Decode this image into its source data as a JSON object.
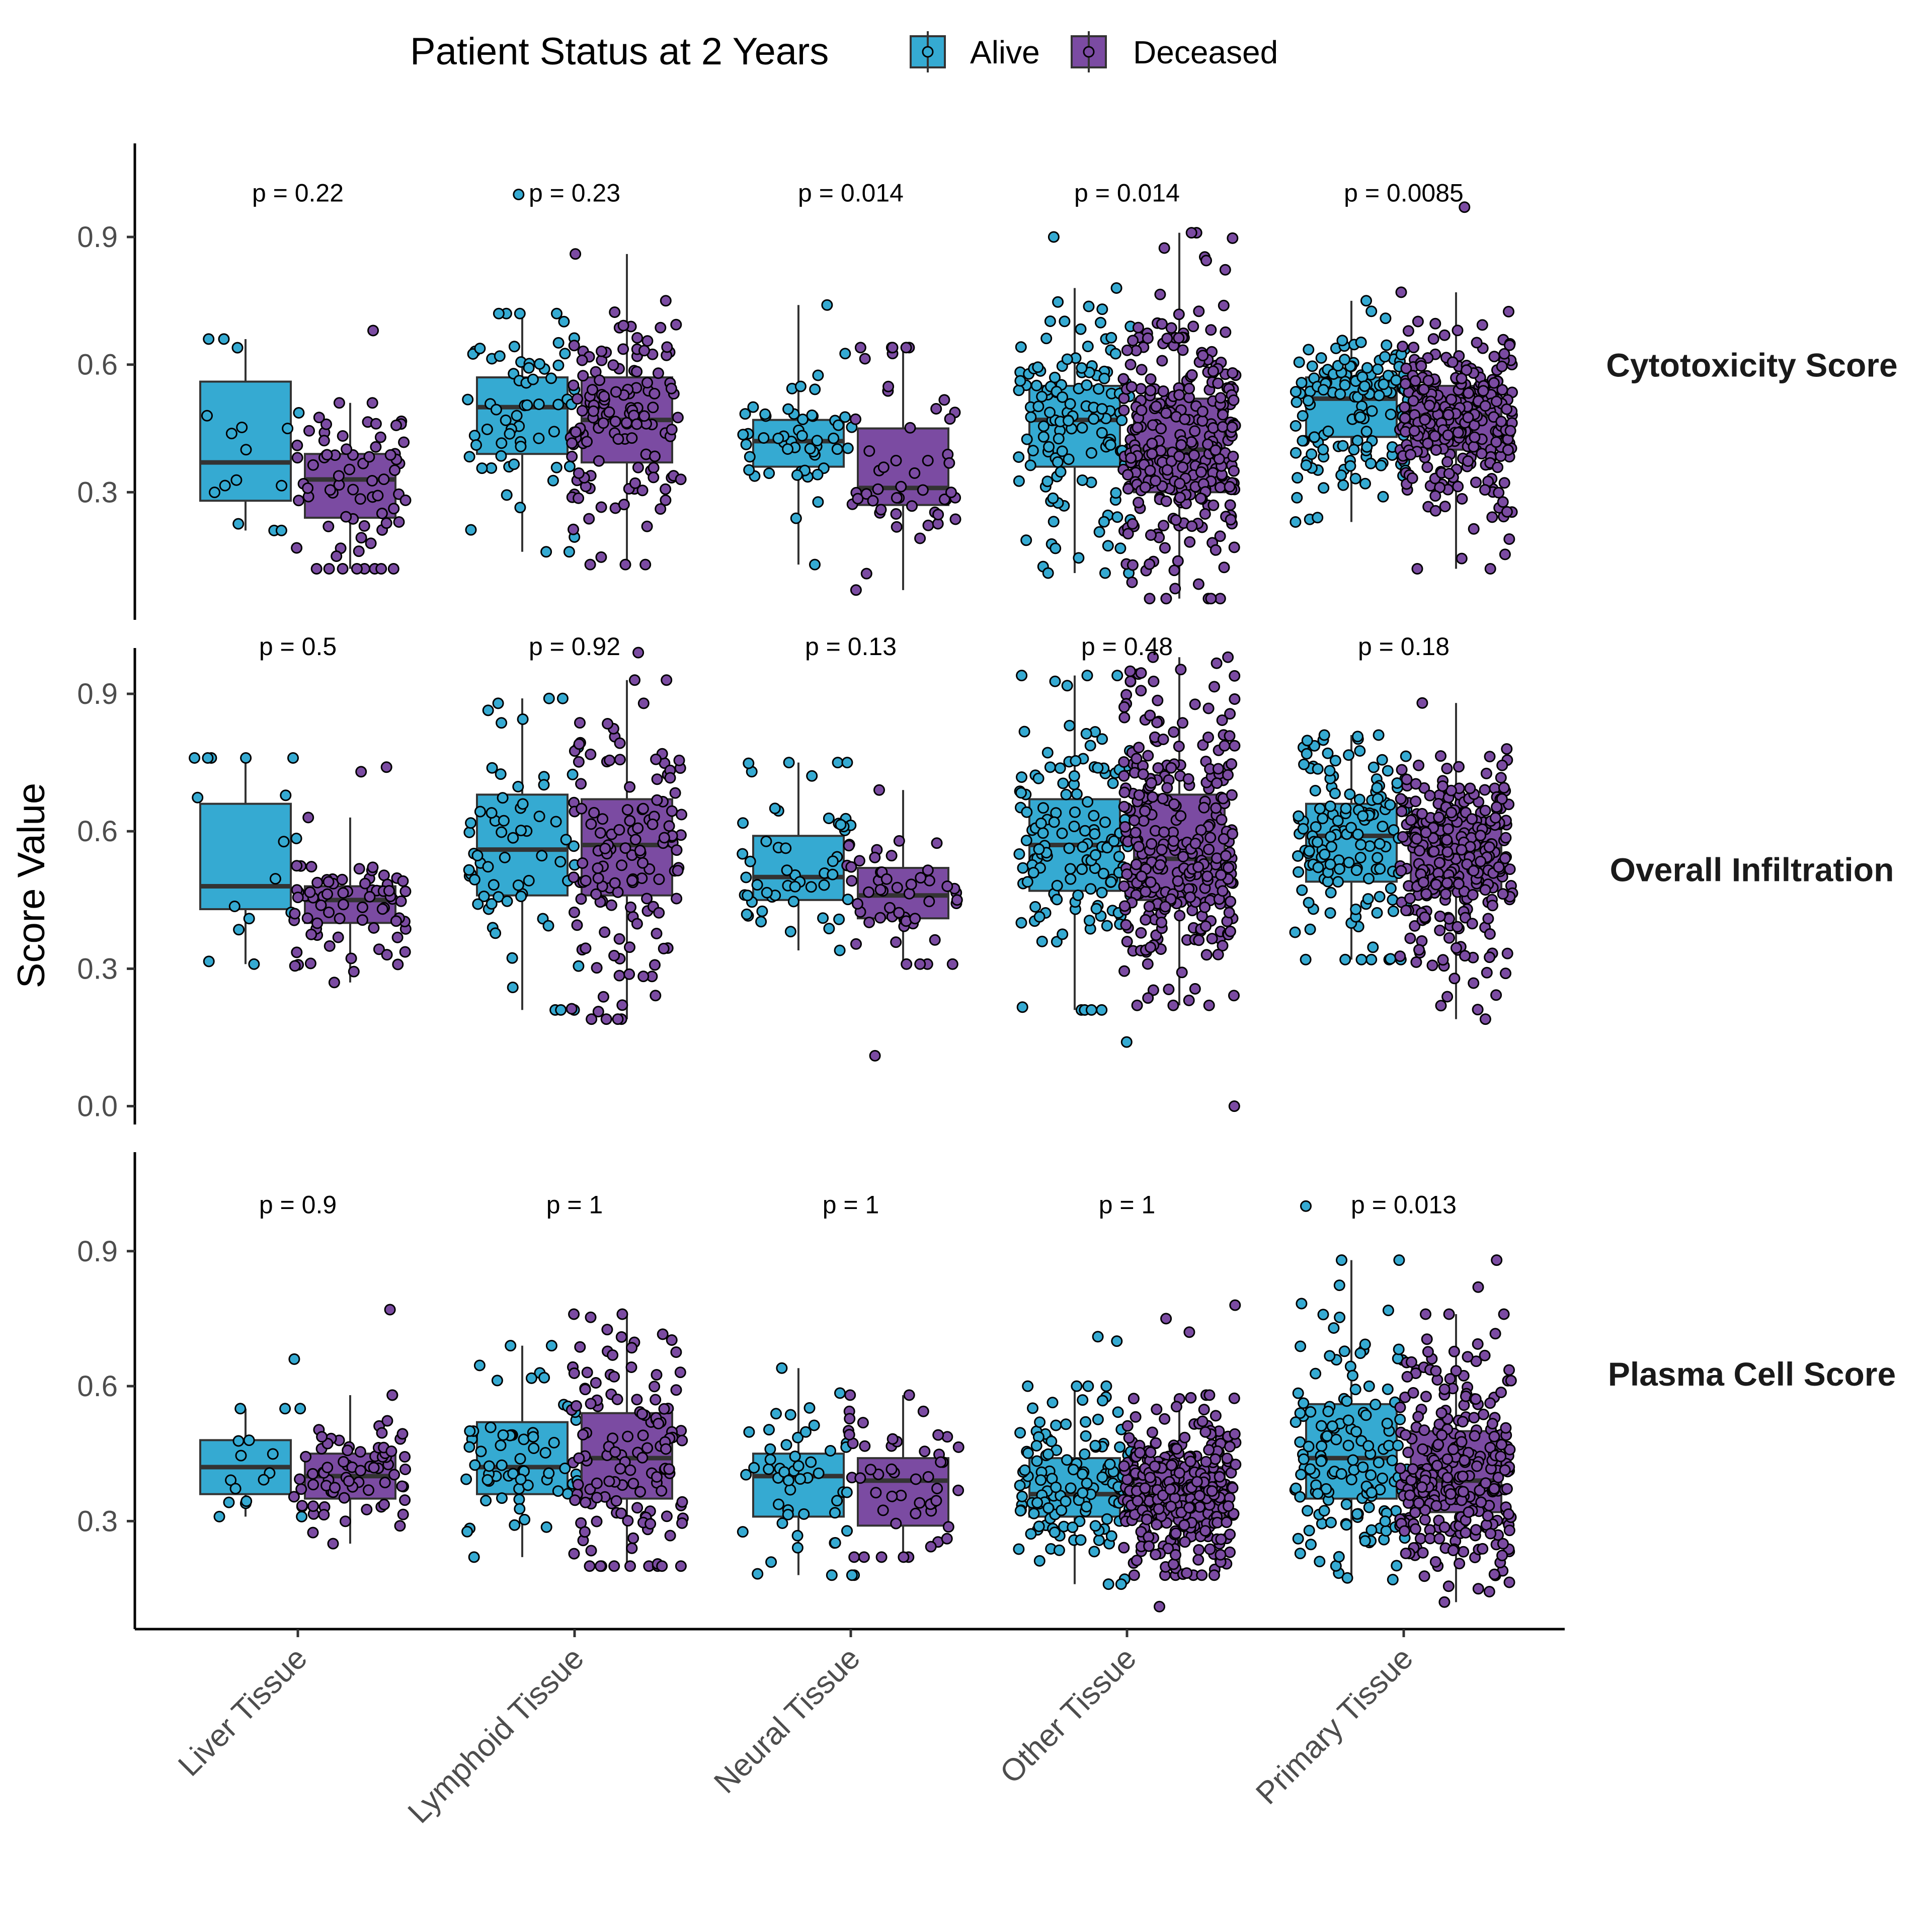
{
  "chart_data": {
    "type": "boxplot-jitter",
    "legend": {
      "title": "Patient Status at 2 Years",
      "position": "top",
      "entries": [
        {
          "name": "Alive",
          "color": "#35aad2"
        },
        {
          "name": "Deceased",
          "color": "#7b4ba2"
        }
      ]
    },
    "ylabel": "Score Value",
    "categories": [
      "Liver Tissue",
      "Lymphoid Tissue",
      "Neural Tissue",
      "Other Tissue",
      "Primary Tissue"
    ],
    "groups": [
      "Alive",
      "Deceased"
    ],
    "panels": [
      {
        "name": "Cytotoxicity Score",
        "ylim": [
          0.0,
          1.12
        ],
        "yticks": [
          {
            "value": 0.3,
            "label": "0.3"
          },
          {
            "value": 0.6,
            "label": "0.6"
          },
          {
            "value": 0.9,
            "label": "0.9"
          }
        ],
        "pvalues": [
          "p = 0.22",
          "p = 0.23",
          "p = 0.014",
          "p = 0.014",
          "p = 0.0085"
        ],
        "boxes": [
          [
            {
              "q1": 0.28,
              "median": 0.37,
              "q3": 0.56,
              "wlo": 0.21,
              "whi": 0.66,
              "n": 14,
              "outliers": []
            },
            {
              "q1": 0.24,
              "median": 0.33,
              "q3": 0.39,
              "wlo": 0.12,
              "whi": 0.51,
              "n": 70,
              "outliers": [
                0.68
              ]
            }
          ],
          [
            {
              "q1": 0.39,
              "median": 0.5,
              "q3": 0.57,
              "wlo": 0.16,
              "whi": 0.72,
              "n": 62,
              "outliers": [
                1.0
              ]
            },
            {
              "q1": 0.37,
              "median": 0.47,
              "q3": 0.57,
              "wlo": 0.13,
              "whi": 0.86,
              "n": 130,
              "outliers": []
            }
          ],
          [
            {
              "q1": 0.36,
              "median": 0.42,
              "q3": 0.47,
              "wlo": 0.13,
              "whi": 0.74,
              "n": 50,
              "outliers": []
            },
            {
              "q1": 0.27,
              "median": 0.31,
              "q3": 0.45,
              "wlo": 0.07,
              "whi": 0.64,
              "n": 48,
              "outliers": []
            }
          ],
          [
            {
              "q1": 0.36,
              "median": 0.47,
              "q3": 0.55,
              "wlo": 0.11,
              "whi": 0.78,
              "n": 130,
              "outliers": [
                0.9
              ]
            },
            {
              "q1": 0.3,
              "median": 0.4,
              "q3": 0.52,
              "wlo": 0.05,
              "whi": 0.91,
              "n": 300,
              "outliers": []
            }
          ],
          [
            {
              "q1": 0.43,
              "median": 0.52,
              "q3": 0.57,
              "wlo": 0.23,
              "whi": 0.75,
              "n": 140,
              "outliers": []
            },
            {
              "q1": 0.4,
              "median": 0.48,
              "q3": 0.55,
              "wlo": 0.12,
              "whi": 0.77,
              "n": 280,
              "outliers": [
                0.97
              ]
            }
          ]
        ]
      },
      {
        "name": "Overall Infiltration",
        "ylim": [
          -0.04,
          1.0
        ],
        "yticks": [
          {
            "value": 0.0,
            "label": "0.0"
          },
          {
            "value": 0.3,
            "label": "0.3"
          },
          {
            "value": 0.6,
            "label": "0.6"
          },
          {
            "value": 0.9,
            "label": "0.9"
          }
        ],
        "pvalues": [
          "p = 0.5",
          "p = 0.92",
          "p = 0.13",
          "p = 0.48",
          "p = 0.18"
        ],
        "boxes": [
          [
            {
              "q1": 0.43,
              "median": 0.48,
              "q3": 0.66,
              "wlo": 0.31,
              "whi": 0.76,
              "n": 14,
              "outliers": []
            },
            {
              "q1": 0.4,
              "median": 0.45,
              "q3": 0.48,
              "wlo": 0.27,
              "whi": 0.63,
              "n": 70,
              "outliers": [
                0.73,
                0.74
              ]
            }
          ],
          [
            {
              "q1": 0.46,
              "median": 0.56,
              "q3": 0.68,
              "wlo": 0.21,
              "whi": 0.89,
              "n": 62,
              "outliers": []
            },
            {
              "q1": 0.46,
              "median": 0.57,
              "q3": 0.67,
              "wlo": 0.19,
              "whi": 0.93,
              "n": 130,
              "outliers": [
                0.99
              ]
            }
          ],
          [
            {
              "q1": 0.45,
              "median": 0.5,
              "q3": 0.59,
              "wlo": 0.34,
              "whi": 0.75,
              "n": 50,
              "outliers": []
            },
            {
              "q1": 0.41,
              "median": 0.46,
              "q3": 0.52,
              "wlo": 0.31,
              "whi": 0.69,
              "n": 48,
              "outliers": [
                0.11
              ]
            }
          ],
          [
            {
              "q1": 0.47,
              "median": 0.57,
              "q3": 0.67,
              "wlo": 0.21,
              "whi": 0.94,
              "n": 130,
              "outliers": [
                0.14
              ]
            },
            {
              "q1": 0.45,
              "median": 0.54,
              "q3": 0.68,
              "wlo": 0.22,
              "whi": 0.98,
              "n": 300,
              "outliers": [
                0.0
              ]
            }
          ],
          [
            {
              "q1": 0.49,
              "median": 0.59,
              "q3": 0.66,
              "wlo": 0.32,
              "whi": 0.81,
              "n": 140,
              "outliers": []
            },
            {
              "q1": 0.47,
              "median": 0.56,
              "q3": 0.63,
              "wlo": 0.19,
              "whi": 0.88,
              "n": 280,
              "outliers": []
            }
          ]
        ]
      },
      {
        "name": "Plasma Cell Score",
        "ylim": [
          0.06,
          1.12
        ],
        "yticks": [
          {
            "value": 0.3,
            "label": "0.3"
          },
          {
            "value": 0.6,
            "label": "0.6"
          },
          {
            "value": 0.9,
            "label": "0.9"
          }
        ],
        "pvalues": [
          "p = 0.9",
          "p = 1",
          "p = 1",
          "p = 1",
          "p = 0.013"
        ],
        "boxes": [
          [
            {
              "q1": 0.36,
              "median": 0.42,
              "q3": 0.48,
              "wlo": 0.31,
              "whi": 0.55,
              "n": 14,
              "outliers": [
                0.66
              ]
            },
            {
              "q1": 0.35,
              "median": 0.4,
              "q3": 0.45,
              "wlo": 0.25,
              "whi": 0.58,
              "n": 70,
              "outliers": [
                0.77
              ]
            }
          ],
          [
            {
              "q1": 0.36,
              "median": 0.42,
              "q3": 0.52,
              "wlo": 0.22,
              "whi": 0.69,
              "n": 62,
              "outliers": []
            },
            {
              "q1": 0.35,
              "median": 0.44,
              "q3": 0.54,
              "wlo": 0.2,
              "whi": 0.76,
              "n": 130,
              "outliers": []
            }
          ],
          [
            {
              "q1": 0.31,
              "median": 0.4,
              "q3": 0.45,
              "wlo": 0.18,
              "whi": 0.64,
              "n": 50,
              "outliers": []
            },
            {
              "q1": 0.29,
              "median": 0.39,
              "q3": 0.44,
              "wlo": 0.22,
              "whi": 0.58,
              "n": 48,
              "outliers": []
            }
          ],
          [
            {
              "q1": 0.31,
              "median": 0.36,
              "q3": 0.44,
              "wlo": 0.16,
              "whi": 0.6,
              "n": 130,
              "outliers": [
                0.7,
                0.71
              ]
            },
            {
              "q1": 0.3,
              "median": 0.36,
              "q3": 0.42,
              "wlo": 0.18,
              "whi": 0.58,
              "n": 300,
              "outliers": [
                0.72,
                0.75,
                0.78,
                0.11
              ]
            }
          ],
          [
            {
              "q1": 0.35,
              "median": 0.44,
              "q3": 0.56,
              "wlo": 0.17,
              "whi": 0.88,
              "n": 140,
              "outliers": [
                1.0
              ]
            },
            {
              "q1": 0.32,
              "median": 0.39,
              "q3": 0.5,
              "wlo": 0.12,
              "whi": 0.76,
              "n": 280,
              "outliers": [
                0.82,
                0.88
              ]
            }
          ]
        ]
      }
    ]
  }
}
